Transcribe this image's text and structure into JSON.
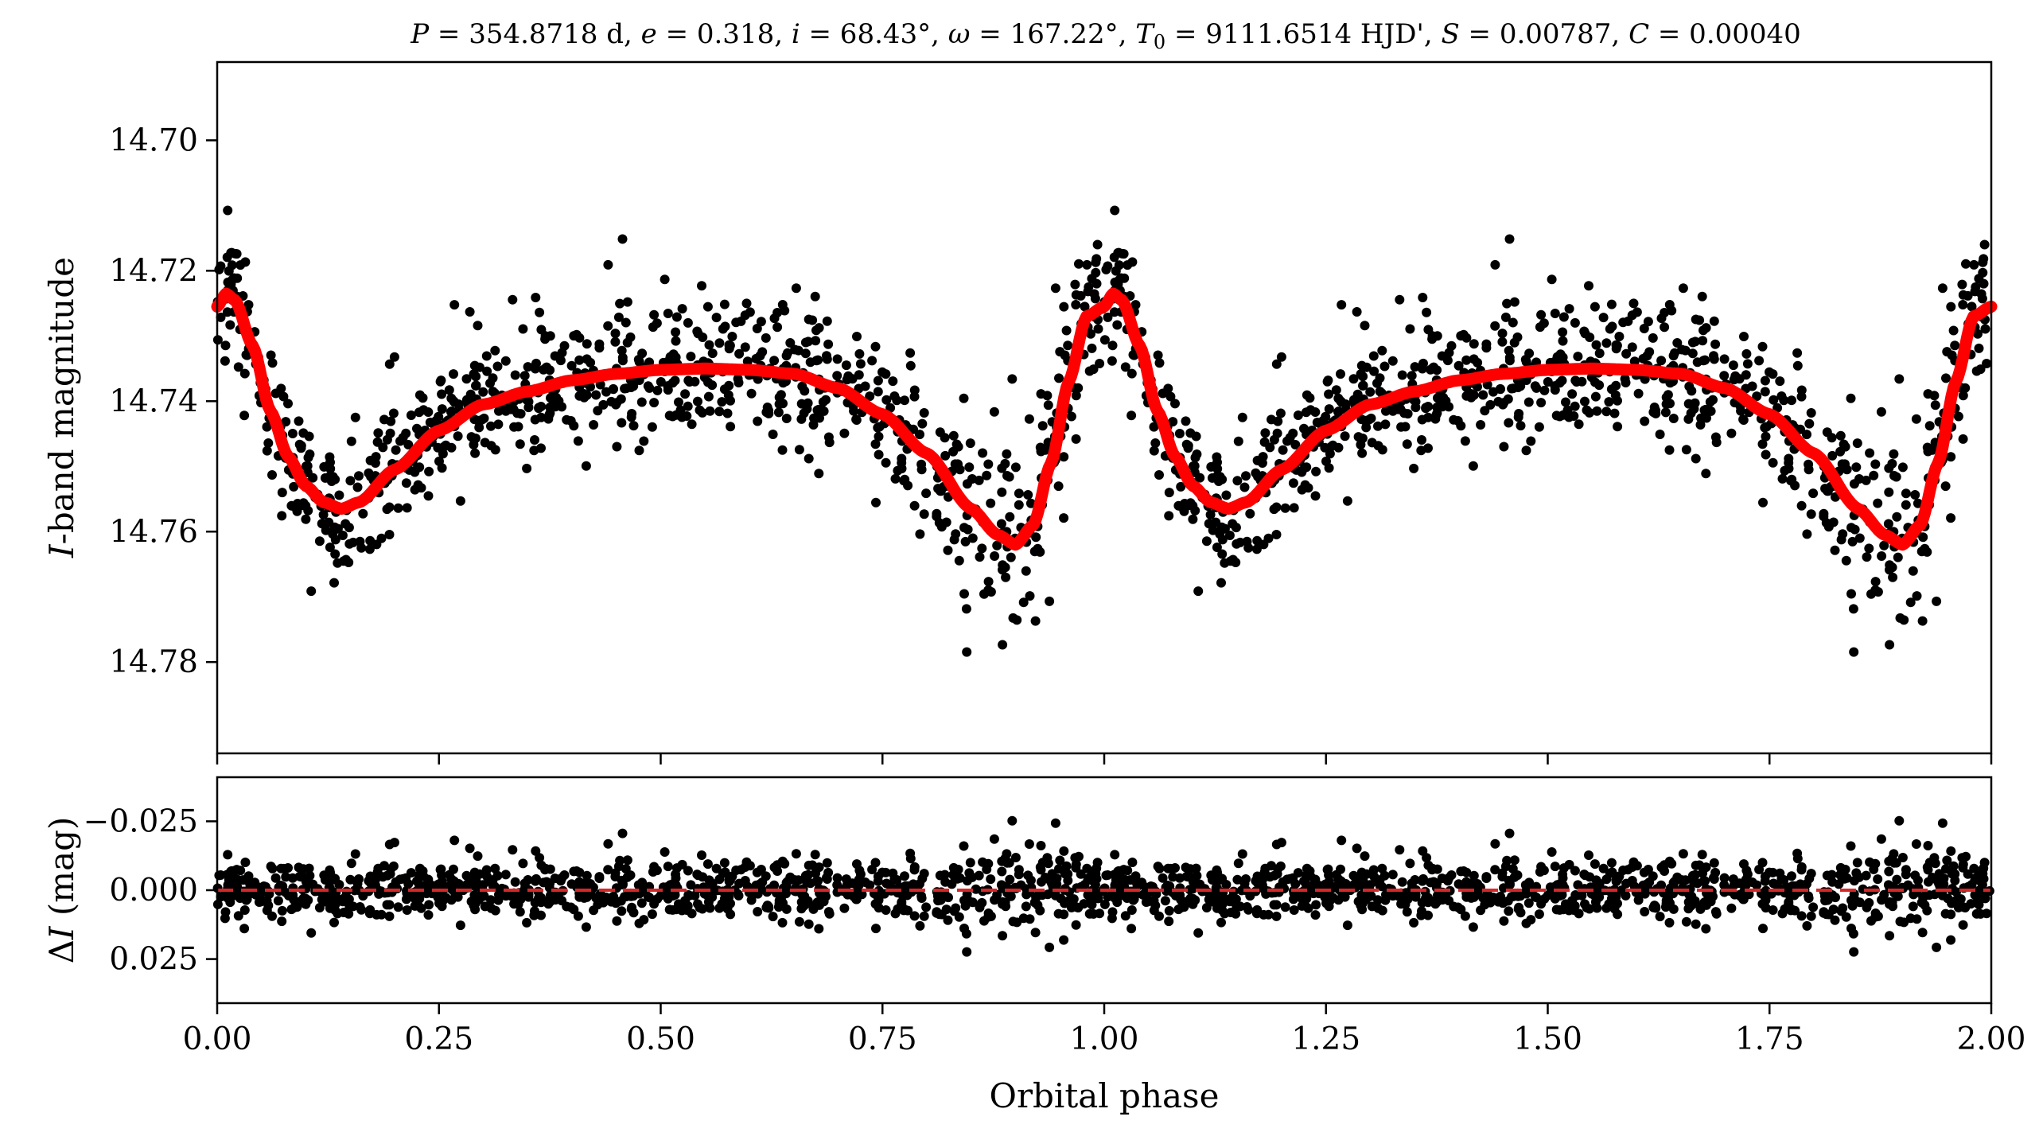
{
  "chart_data": [
    {
      "type": "scatter",
      "panel": "light-curve",
      "title": "P = 354.8718 d, e = 0.318, i = 68.43°, ω = 167.22°, T0 = 9111.6514 HJD', S = 0.00787, C = 0.00040",
      "title_parts": {
        "P_sym": "P",
        "P_val": " = 354.8718 d, ",
        "e_sym": "e",
        "e_val": " = 0.318, ",
        "i_sym": "i",
        "i_val": " = 68.43°, ",
        "w_sym": "ω",
        "w_val": " = 167.22°, ",
        "T_sym": "T",
        "T_sub": "0",
        "T_val": " = 9111.6514 HJD', ",
        "S_sym": "S",
        "S_val": " = 0.00787, ",
        "C_sym": "C",
        "C_val": " = 0.00040"
      },
      "xlabel": "Orbital phase",
      "ylabel_italic": "I",
      "ylabel_rest": "-band magnitude",
      "ylabel": "I-band magnitude",
      "xlim": [
        0.0,
        2.0
      ],
      "ylim": [
        14.794,
        14.688
      ],
      "y_inverted": true,
      "yticks": [
        14.7,
        14.72,
        14.74,
        14.76,
        14.78
      ],
      "ytick_labels": [
        "14.70",
        "14.72",
        "14.74",
        "14.76",
        "14.78"
      ],
      "series": [
        {
          "name": "observations",
          "kind": "scatter",
          "color": "#000000",
          "n_points_per_cycle": 900,
          "scatter_sigma_mag": 0.0055
        },
        {
          "name": "model",
          "kind": "line",
          "color": "#ff0000",
          "phase": [
            0.0,
            0.01,
            0.02,
            0.04,
            0.06,
            0.08,
            0.1,
            0.12,
            0.14,
            0.16,
            0.2,
            0.25,
            0.3,
            0.35,
            0.4,
            0.45,
            0.5,
            0.55,
            0.6,
            0.65,
            0.7,
            0.75,
            0.8,
            0.85,
            0.88,
            0.9,
            0.92,
            0.94,
            0.96,
            0.98,
            1.0
          ],
          "magnitude": [
            14.7255,
            14.7235,
            14.7245,
            14.7315,
            14.7415,
            14.7485,
            14.753,
            14.7555,
            14.7565,
            14.7555,
            14.7505,
            14.7445,
            14.7405,
            14.7385,
            14.7368,
            14.7358,
            14.7352,
            14.735,
            14.7352,
            14.7358,
            14.738,
            14.742,
            14.748,
            14.7565,
            14.7605,
            14.762,
            14.759,
            14.7495,
            14.737,
            14.727,
            14.7255
          ]
        }
      ]
    },
    {
      "type": "scatter",
      "panel": "residuals",
      "xlabel": "Orbital phase",
      "ylabel_delta": "Δ",
      "ylabel_italic": "I",
      "ylabel_rest": " (mag)",
      "ylabel": "ΔI (mag)",
      "xlim": [
        0.0,
        2.0
      ],
      "ylim": [
        0.041,
        -0.041
      ],
      "y_inverted": true,
      "yticks": [
        -0.025,
        0.0,
        0.025
      ],
      "ytick_labels": [
        "−0.025",
        "0.000",
        "0.025"
      ],
      "xticks": [
        0.0,
        0.25,
        0.5,
        0.75,
        1.0,
        1.25,
        1.5,
        1.75,
        2.0
      ],
      "xtick_labels": [
        "0.00",
        "0.25",
        "0.50",
        "0.75",
        "1.00",
        "1.25",
        "1.50",
        "1.75",
        "2.00"
      ],
      "series": [
        {
          "name": "residuals",
          "kind": "scatter",
          "color": "#000000"
        },
        {
          "name": "zero-line",
          "kind": "line",
          "style": "dashed",
          "color": "#d62728",
          "y": 0.0
        }
      ]
    }
  ]
}
